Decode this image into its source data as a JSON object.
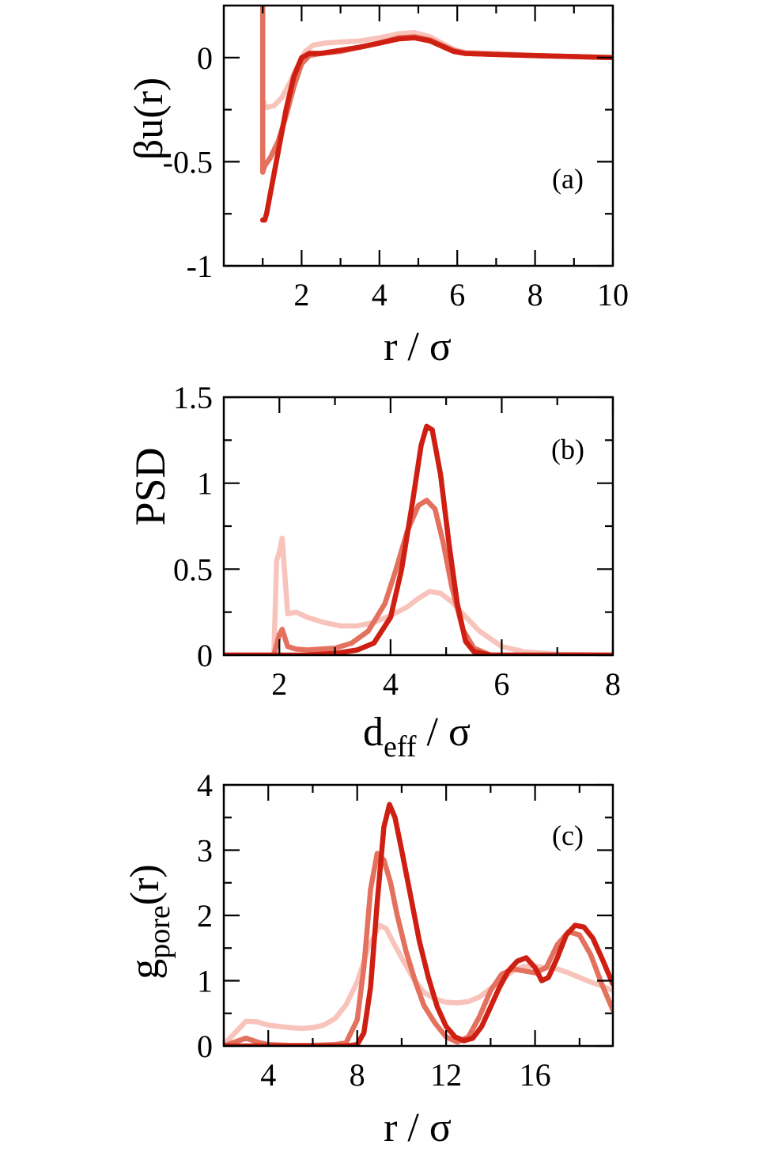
{
  "chart_data": [
    {
      "type": "line",
      "panel_label": "(a)",
      "xlabel": "r / σ",
      "ylabel": "βu(r)",
      "xlim": [
        0,
        10
      ],
      "ylim": [
        -1,
        0.25
      ],
      "xticks": [
        2,
        4,
        6,
        8,
        10
      ],
      "xtick_labels": [
        "2",
        "4",
        "6",
        "8",
        "10"
      ],
      "xminor": [
        1,
        3,
        5,
        7,
        9
      ],
      "yticks": [
        -1,
        -0.5,
        0
      ],
      "ytick_labels": [
        "-1",
        "-0.5",
        "0"
      ],
      "yminor": [
        -0.75,
        -0.25
      ],
      "series": [
        {
          "name": "light",
          "color": "#f7c3bb",
          "x": [
            1.0,
            1.0,
            1.05,
            1.1,
            1.3,
            1.5,
            1.7,
            1.9,
            2.1,
            2.3,
            2.6,
            3.0,
            3.5,
            4.0,
            4.5,
            4.9,
            5.3,
            5.6,
            5.9,
            6.2,
            7.0,
            8.0,
            9.0,
            10.0
          ],
          "y": [
            0.25,
            -0.2,
            -0.23,
            -0.24,
            -0.23,
            -0.19,
            -0.12,
            -0.04,
            0.03,
            0.06,
            0.07,
            0.075,
            0.08,
            0.095,
            0.115,
            0.12,
            0.1,
            0.07,
            0.04,
            0.025,
            0.02,
            0.01,
            0.005,
            0.0
          ]
        },
        {
          "name": "medium",
          "color": "#e4705e",
          "x": [
            1.0,
            1.0,
            1.05,
            1.2,
            1.4,
            1.6,
            1.8,
            2.0,
            2.2,
            2.5,
            3.0,
            3.5,
            4.0,
            4.5,
            4.9,
            5.3,
            5.6,
            5.9,
            6.2,
            7.0,
            8.0,
            9.0,
            10.0
          ],
          "y": [
            0.25,
            -0.55,
            -0.52,
            -0.48,
            -0.4,
            -0.28,
            -0.14,
            -0.03,
            0.01,
            0.02,
            0.03,
            0.05,
            0.07,
            0.095,
            0.1,
            0.085,
            0.06,
            0.035,
            0.02,
            0.015,
            0.01,
            0.005,
            0.0
          ]
        },
        {
          "name": "dark",
          "color": "#cf1f12",
          "x": [
            1.0,
            1.05,
            1.1,
            1.2,
            1.4,
            1.6,
            1.8,
            2.0,
            2.2,
            2.5,
            3.0,
            3.5,
            4.0,
            4.5,
            4.9,
            5.3,
            5.6,
            5.9,
            6.2,
            7.0,
            8.0,
            9.0,
            10.0
          ],
          "y": [
            -0.78,
            -0.78,
            -0.75,
            -0.65,
            -0.45,
            -0.25,
            -0.09,
            0.0,
            0.02,
            0.02,
            0.035,
            0.05,
            0.07,
            0.09,
            0.095,
            0.08,
            0.055,
            0.03,
            0.02,
            0.015,
            0.01,
            0.005,
            0.0
          ]
        }
      ]
    },
    {
      "type": "line",
      "panel_label": "(b)",
      "xlabel": "d",
      "xlabel_sub": "eff",
      "xlabel_tail": " / σ",
      "ylabel": "PSD",
      "xlim": [
        1,
        8
      ],
      "ylim": [
        0,
        1.5
      ],
      "xticks": [
        2,
        4,
        6,
        8
      ],
      "xtick_labels": [
        "2",
        "4",
        "6",
        "8"
      ],
      "xminor": [
        3,
        5,
        7
      ],
      "yticks": [
        0,
        0.5,
        1,
        1.5
      ],
      "ytick_labels": [
        "0",
        "0.5",
        "1",
        "1.5"
      ],
      "yminor": [
        0.25,
        0.75,
        1.25
      ],
      "series": [
        {
          "name": "light",
          "color": "#f7c3bb",
          "x": [
            1.0,
            1.9,
            1.95,
            2.0,
            2.05,
            2.15,
            2.3,
            2.5,
            2.8,
            3.1,
            3.4,
            3.7,
            4.0,
            4.3,
            4.5,
            4.7,
            4.9,
            5.1,
            5.3,
            5.6,
            6.0,
            6.4,
            7.0,
            8.0
          ],
          "y": [
            0.0,
            0.0,
            0.55,
            0.6,
            0.68,
            0.24,
            0.25,
            0.22,
            0.19,
            0.17,
            0.17,
            0.19,
            0.23,
            0.28,
            0.33,
            0.37,
            0.36,
            0.31,
            0.24,
            0.14,
            0.05,
            0.02,
            0.005,
            0.0
          ]
        },
        {
          "name": "medium",
          "color": "#e4705e",
          "x": [
            1.0,
            1.9,
            2.0,
            2.05,
            2.15,
            2.3,
            2.5,
            3.0,
            3.3,
            3.6,
            3.9,
            4.1,
            4.3,
            4.5,
            4.65,
            4.8,
            4.95,
            5.1,
            5.3,
            5.5,
            5.8,
            8.0
          ],
          "y": [
            0.0,
            0.0,
            0.12,
            0.15,
            0.05,
            0.035,
            0.03,
            0.04,
            0.07,
            0.14,
            0.3,
            0.5,
            0.72,
            0.87,
            0.9,
            0.85,
            0.65,
            0.4,
            0.15,
            0.04,
            0.0,
            0.0
          ]
        },
        {
          "name": "dark",
          "color": "#cf1f12",
          "x": [
            1.0,
            2.0,
            2.5,
            3.0,
            3.4,
            3.7,
            4.0,
            4.2,
            4.4,
            4.55,
            4.65,
            4.75,
            4.9,
            5.05,
            5.2,
            5.35,
            5.5,
            5.8,
            8.0
          ],
          "y": [
            0.0,
            0.0,
            0.0,
            0.01,
            0.03,
            0.07,
            0.22,
            0.5,
            0.9,
            1.22,
            1.33,
            1.31,
            1.05,
            0.65,
            0.3,
            0.08,
            0.02,
            0.0,
            0.0
          ]
        }
      ]
    },
    {
      "type": "line",
      "panel_label": "(c)",
      "xlabel": "r / σ",
      "ylabel": "g",
      "ylabel_sub": "pore",
      "ylabel_tail": "(r)",
      "xlim": [
        2,
        19.5
      ],
      "ylim": [
        0,
        4
      ],
      "xticks": [
        4,
        8,
        12,
        16
      ],
      "xtick_labels": [
        "4",
        "8",
        "12",
        "16"
      ],
      "xminor": [
        2,
        6,
        10,
        14,
        18
      ],
      "yticks": [
        0,
        1,
        2,
        3,
        4
      ],
      "ytick_labels": [
        "0",
        "1",
        "2",
        "3",
        "4"
      ],
      "yminor": [
        0.5,
        1.5,
        2.5,
        3.5
      ],
      "series": [
        {
          "name": "light",
          "color": "#f7c3bb",
          "x": [
            2.0,
            2.5,
            3.0,
            3.5,
            4.0,
            4.5,
            5.0,
            5.5,
            6.0,
            6.5,
            7.0,
            7.5,
            8.0,
            8.5,
            9.0,
            9.3,
            9.6,
            10.0,
            10.5,
            11.0,
            11.5,
            12.0,
            12.5,
            13.0,
            13.5,
            14.0,
            14.5,
            15.0,
            15.5,
            16.0,
            16.5,
            17.0,
            17.5,
            18.0,
            18.5,
            19.0,
            19.5
          ],
          "y": [
            0.02,
            0.2,
            0.38,
            0.37,
            0.32,
            0.3,
            0.28,
            0.27,
            0.28,
            0.32,
            0.42,
            0.63,
            0.98,
            1.5,
            1.85,
            1.8,
            1.6,
            1.35,
            1.05,
            0.82,
            0.72,
            0.67,
            0.66,
            0.68,
            0.75,
            0.88,
            1.02,
            1.15,
            1.22,
            1.22,
            1.2,
            1.18,
            1.12,
            1.05,
            0.98,
            0.92,
            0.85
          ]
        },
        {
          "name": "medium",
          "color": "#e4705e",
          "x": [
            2.0,
            2.5,
            3.0,
            3.5,
            4.0,
            5.0,
            6.0,
            7.0,
            7.5,
            8.0,
            8.3,
            8.6,
            8.9,
            9.2,
            9.5,
            9.8,
            10.2,
            10.6,
            11.0,
            11.5,
            12.0,
            12.5,
            13.0,
            13.5,
            14.0,
            14.5,
            15.0,
            15.5,
            16.0,
            16.5,
            17.0,
            17.5,
            18.0,
            18.5,
            19.0,
            19.5
          ],
          "y": [
            0.0,
            0.06,
            0.12,
            0.06,
            0.02,
            0.01,
            0.01,
            0.02,
            0.05,
            0.4,
            1.2,
            2.4,
            2.95,
            2.85,
            2.5,
            2.0,
            1.45,
            1.0,
            0.62,
            0.35,
            0.14,
            0.06,
            0.14,
            0.45,
            0.85,
            1.1,
            1.18,
            1.15,
            1.12,
            1.2,
            1.55,
            1.75,
            1.7,
            1.4,
            0.95,
            0.55
          ]
        },
        {
          "name": "dark",
          "color": "#cf1f12",
          "x": [
            2.0,
            3.0,
            4.0,
            5.0,
            6.0,
            7.0,
            7.5,
            8.0,
            8.3,
            8.6,
            8.9,
            9.2,
            9.45,
            9.7,
            10.0,
            10.4,
            10.8,
            11.2,
            11.6,
            12.0,
            12.4,
            12.8,
            13.2,
            13.6,
            14.0,
            14.4,
            14.8,
            15.2,
            15.6,
            16.0,
            16.3,
            16.6,
            17.0,
            17.4,
            17.8,
            18.2,
            18.6,
            19.0,
            19.5
          ],
          "y": [
            0.0,
            0.0,
            0.0,
            0.0,
            0.0,
            0.0,
            0.0,
            0.02,
            0.2,
            0.9,
            2.2,
            3.35,
            3.7,
            3.5,
            3.0,
            2.3,
            1.6,
            1.05,
            0.6,
            0.3,
            0.14,
            0.08,
            0.12,
            0.3,
            0.6,
            0.9,
            1.15,
            1.3,
            1.35,
            1.2,
            1.0,
            1.05,
            1.35,
            1.7,
            1.85,
            1.82,
            1.65,
            1.35,
            0.95
          ]
        }
      ]
    }
  ]
}
